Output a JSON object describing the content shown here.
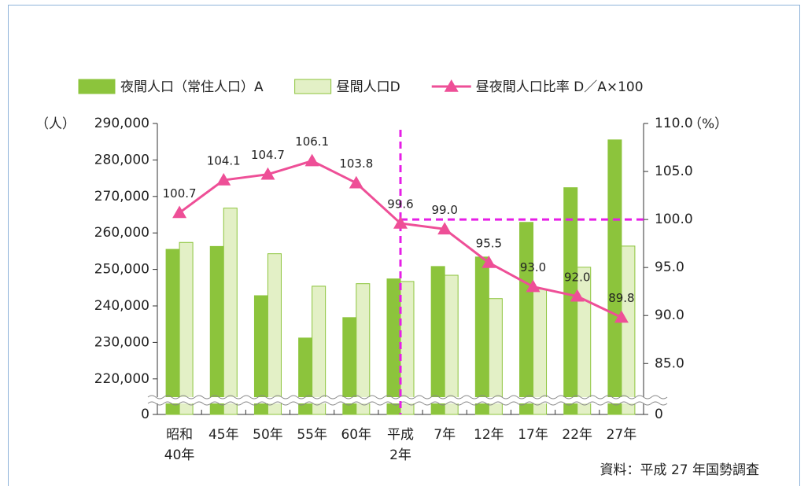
{
  "chart_data": {
    "type": "bar-line",
    "y_label": "（人）",
    "y2_label": "（%）",
    "source": "資料：平成 27 年国勢調査",
    "categories": [
      "昭和\n40年",
      "45年",
      "50年",
      "55年",
      "60年",
      "平成\n2年",
      "7年",
      "12年",
      "17年",
      "22年",
      "27年"
    ],
    "series": [
      {
        "name": "夜間人口（常住人口）A",
        "kind": "bar",
        "color": "#8cc43c",
        "values": [
          255500,
          256300,
          242800,
          231200,
          236800,
          247400,
          250800,
          253400,
          262900,
          272400,
          285500
        ]
      },
      {
        "name": "昼間人口D",
        "kind": "bar",
        "color": "#e3f0c6",
        "values": [
          257400,
          266800,
          254300,
          245400,
          246100,
          246700,
          248400,
          242000,
          244600,
          250600,
          256400
        ]
      },
      {
        "name": "昼夜間人口比率 D／A×100",
        "kind": "line",
        "axis": "y2",
        "color": "#ee4f97",
        "values": [
          100.7,
          104.1,
          104.7,
          106.1,
          103.8,
          99.6,
          99.0,
          95.5,
          93.0,
          92.0,
          89.8
        ],
        "value_labels": [
          "100.7",
          "104.1",
          "104.7",
          "106.1",
          "103.8",
          "99.6",
          "99.0",
          "95.5",
          "93.0",
          "92.0",
          "89.8"
        ]
      }
    ],
    "ylim": [
      0,
      290000
    ],
    "y_break": [
      0,
      215000
    ],
    "yticks": [
      0,
      {
        "value": 220000,
        "label": "220,000"
      },
      {
        "value": 230000,
        "label": "230,000"
      },
      {
        "value": 240000,
        "label": "240,000"
      },
      {
        "value": 250000,
        "label": "250,000"
      },
      {
        "value": 260000,
        "label": "260,000"
      },
      {
        "value": 270000,
        "label": "270,000"
      },
      {
        "value": 280000,
        "label": "280,000"
      },
      {
        "value": 290000,
        "label": "290,000"
      }
    ],
    "y2lim": [
      0,
      110
    ],
    "y2_break": [
      0,
      81.5
    ],
    "y2ticks": [
      0,
      {
        "value": 85,
        "label": "85.0"
      },
      {
        "value": 90,
        "label": "90.0"
      },
      {
        "value": 95,
        "label": "95.0"
      },
      {
        "value": 100,
        "label": "100.0"
      },
      {
        "value": 105,
        "label": "105.0"
      },
      {
        "value": 110,
        "label": "110.0"
      }
    ],
    "reference_lines": {
      "color": "#e61ee6",
      "x_index": 5,
      "y2_value": 100
    }
  }
}
